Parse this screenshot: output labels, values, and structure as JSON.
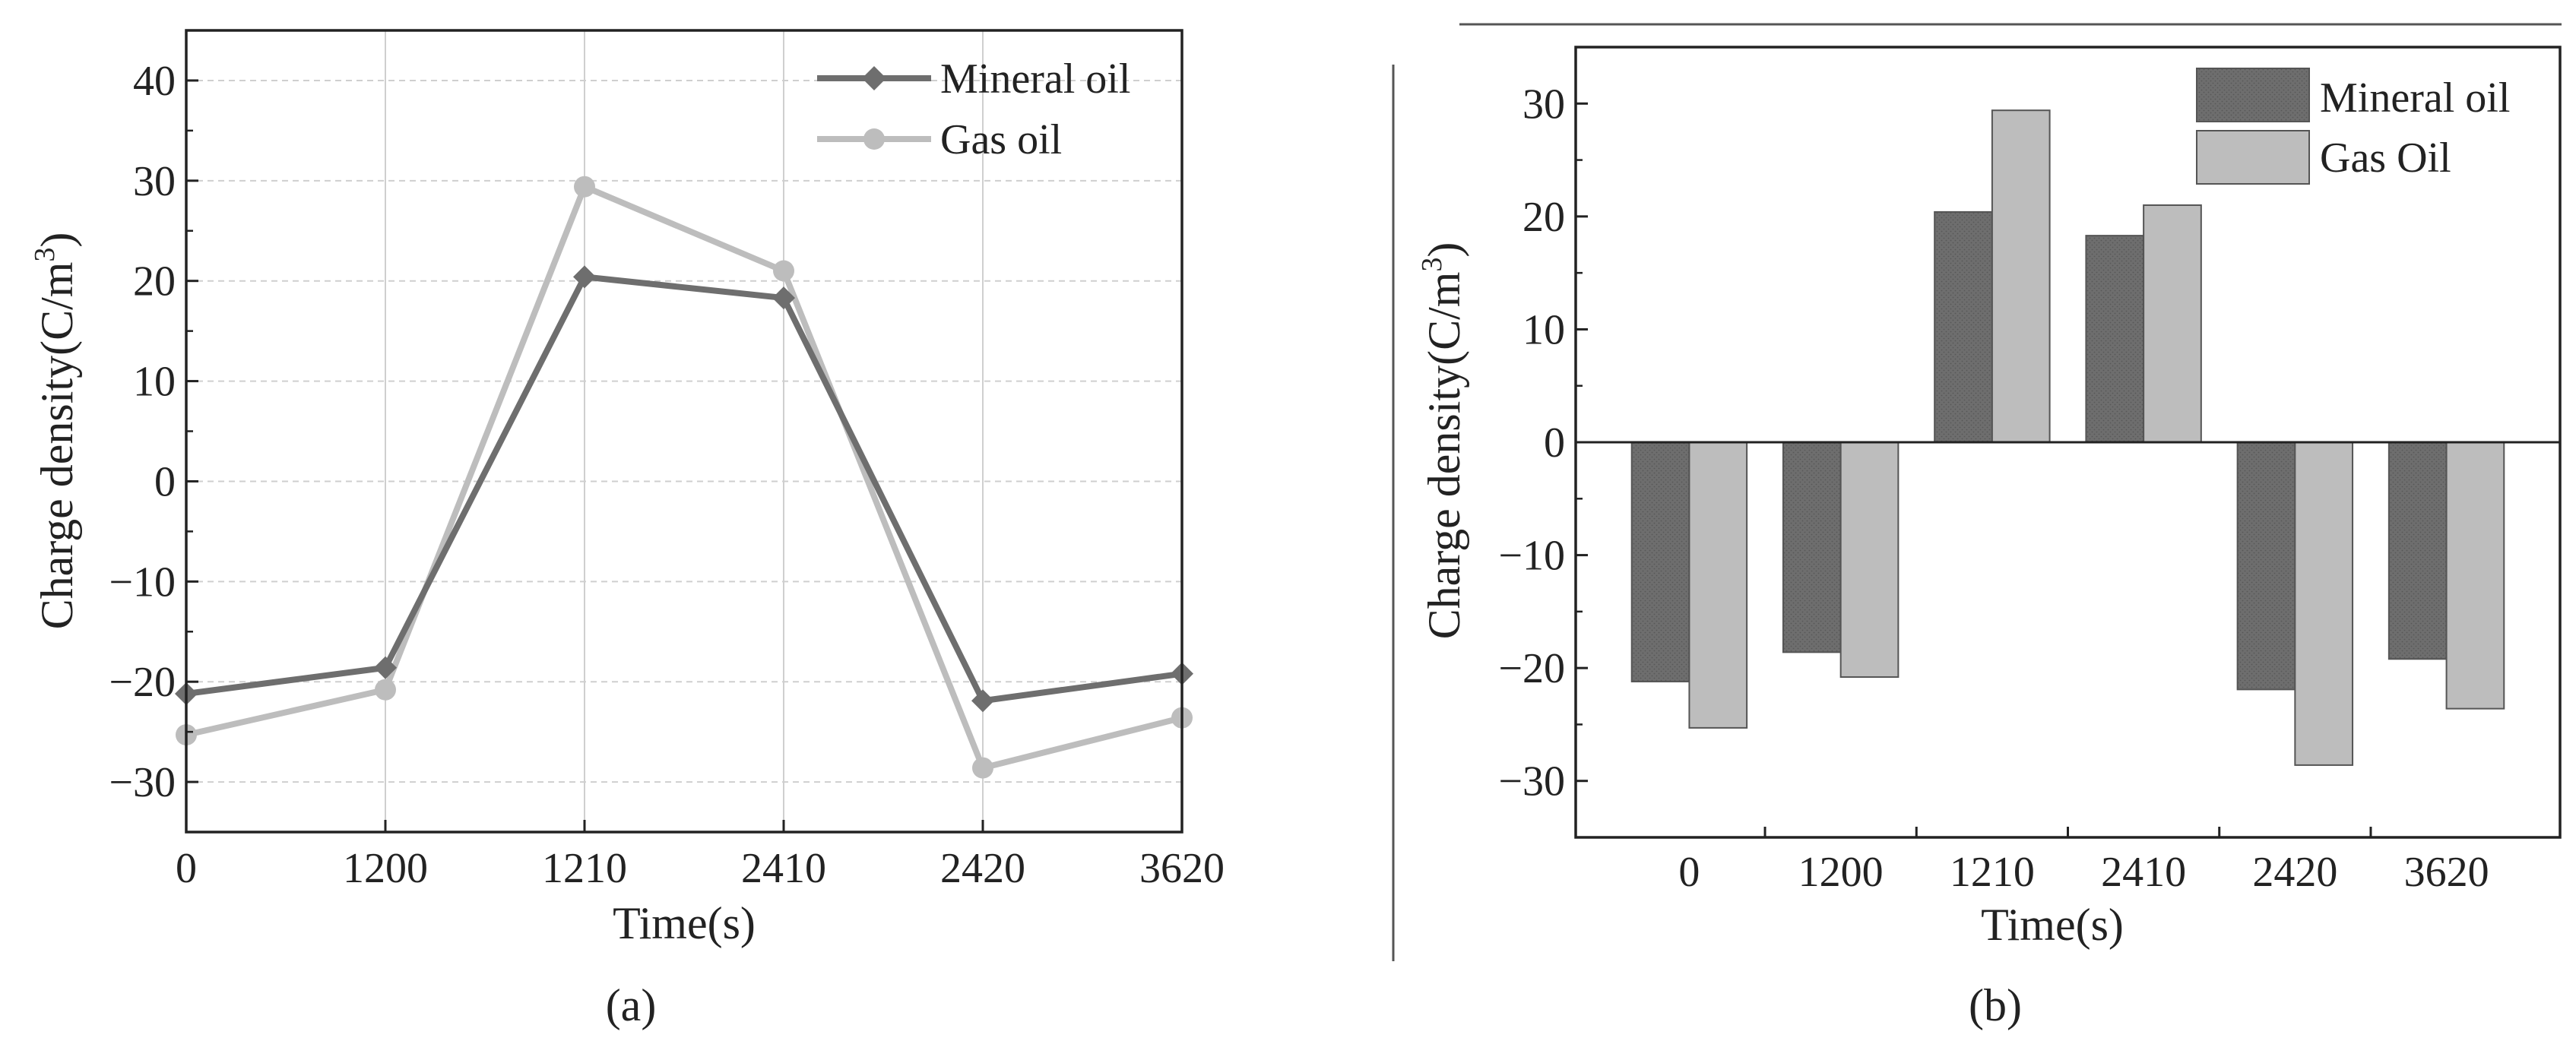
{
  "chart_data": [
    {
      "type": "line",
      "panel_label": "(a)",
      "xlabel": "Time(s)",
      "ylabel": "Charge density(C/m³)",
      "ylabel_main": "Charge density(C/m",
      "ylabel_sup": "3",
      "ylabel_tail": ")",
      "categories": [
        "0",
        "1200",
        "1210",
        "2410",
        "2420",
        "3620"
      ],
      "ylim": [
        -35,
        45
      ],
      "yticks": [
        -30,
        -20,
        -10,
        0,
        10,
        20,
        30,
        40
      ],
      "grid": true,
      "legend_position": "top-right",
      "series": [
        {
          "name": "Mineral oil",
          "marker": "diamond",
          "color": "#6e6e6e",
          "values": [
            -21.2,
            -18.6,
            20.4,
            18.3,
            -21.9,
            -19.2
          ]
        },
        {
          "name": "Gas oil",
          "marker": "circle",
          "color": "#bdbdbd",
          "values": [
            -25.3,
            -20.8,
            29.4,
            21.0,
            -28.6,
            -23.6
          ]
        }
      ]
    },
    {
      "type": "bar",
      "panel_label": "(b)",
      "xlabel": "Time(s)",
      "ylabel": "Charge density(C/m³)",
      "ylabel_main": "Charge density(C/m",
      "ylabel_sup": "3",
      "ylabel_tail": ")",
      "categories": [
        "0",
        "1200",
        "1210",
        "2410",
        "2420",
        "3620"
      ],
      "ylim": [
        -35,
        35
      ],
      "yticks": [
        -30,
        -20,
        -10,
        0,
        10,
        20,
        30
      ],
      "grid": false,
      "legend_position": "top-right",
      "series": [
        {
          "name": "Mineral oil",
          "color": "#6e6e6e",
          "values": [
            -21.2,
            -18.6,
            20.4,
            18.3,
            -21.9,
            -19.2
          ]
        },
        {
          "name": "Gas Oil",
          "color": "#bdbdbd",
          "values": [
            -25.3,
            -20.8,
            29.4,
            21.0,
            -28.6,
            -23.6
          ]
        }
      ]
    }
  ]
}
